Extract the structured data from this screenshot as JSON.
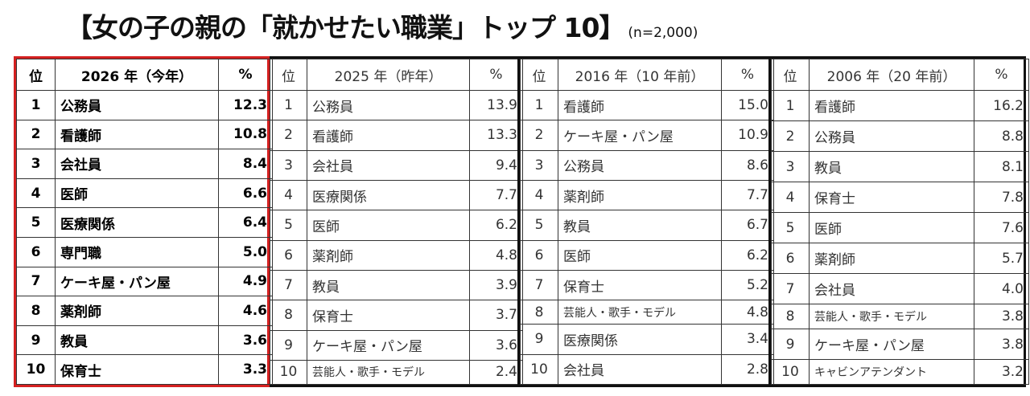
{
  "title": "【女の子の親の「就かせたい職業」トップ 10】",
  "sample": "(n=2,000)",
  "colors": {
    "highlight_border": "#d42020",
    "border": "#111111"
  },
  "chart_data": {
    "type": "table",
    "groups": [
      {
        "rank_header": "位",
        "year_header": "2026 年（今年）",
        "pct_header": "%",
        "rows": [
          {
            "rank": "1",
            "job": "公務員",
            "pct": "12.3"
          },
          {
            "rank": "2",
            "job": "看護師",
            "pct": "10.8"
          },
          {
            "rank": "3",
            "job": "会社員",
            "pct": "8.4"
          },
          {
            "rank": "4",
            "job": "医師",
            "pct": "6.6"
          },
          {
            "rank": "5",
            "job": "医療関係",
            "pct": "6.4"
          },
          {
            "rank": "6",
            "job": "専門職",
            "pct": "5.0"
          },
          {
            "rank": "7",
            "job": "ケーキ屋・パン屋",
            "pct": "4.9"
          },
          {
            "rank": "8",
            "job": "薬剤師",
            "pct": "4.6"
          },
          {
            "rank": "9",
            "job": "教員",
            "pct": "3.6"
          },
          {
            "rank": "10",
            "job": "保育士",
            "pct": "3.3"
          }
        ]
      },
      {
        "rank_header": "位",
        "year_header": "2025 年（昨年）",
        "pct_header": "%",
        "rows": [
          {
            "rank": "1",
            "job": "公務員",
            "pct": "13.9"
          },
          {
            "rank": "2",
            "job": "看護師",
            "pct": "13.3"
          },
          {
            "rank": "3",
            "job": "会社員",
            "pct": "9.4"
          },
          {
            "rank": "4",
            "job": "医療関係",
            "pct": "7.7"
          },
          {
            "rank": "5",
            "job": "医師",
            "pct": "6.2"
          },
          {
            "rank": "6",
            "job": "薬剤師",
            "pct": "4.8"
          },
          {
            "rank": "7",
            "job": "教員",
            "pct": "3.9"
          },
          {
            "rank": "8",
            "job": "保育士",
            "pct": "3.7"
          },
          {
            "rank": "9",
            "job": "ケーキ屋・パン屋",
            "pct": "3.6"
          },
          {
            "rank": "10",
            "job": "芸能人・歌手・モデル",
            "pct": "2.4"
          }
        ]
      },
      {
        "rank_header": "位",
        "year_header": "2016 年（10 年前）",
        "pct_header": "%",
        "rows": [
          {
            "rank": "1",
            "job": "看護師",
            "pct": "15.0"
          },
          {
            "rank": "2",
            "job": "ケーキ屋・パン屋",
            "pct": "10.9"
          },
          {
            "rank": "3",
            "job": "公務員",
            "pct": "8.6"
          },
          {
            "rank": "4",
            "job": "薬剤師",
            "pct": "7.7"
          },
          {
            "rank": "5",
            "job": "教員",
            "pct": "6.7"
          },
          {
            "rank": "6",
            "job": "医師",
            "pct": "6.2"
          },
          {
            "rank": "7",
            "job": "保育士",
            "pct": "5.2"
          },
          {
            "rank": "8",
            "job": "芸能人・歌手・モデル",
            "pct": "4.8"
          },
          {
            "rank": "9",
            "job": "医療関係",
            "pct": "3.4"
          },
          {
            "rank": "10",
            "job": "会社員",
            "pct": "2.8"
          }
        ]
      },
      {
        "rank_header": "位",
        "year_header": "2006 年（20 年前）",
        "pct_header": "%",
        "rows": [
          {
            "rank": "1",
            "job": "看護師",
            "pct": "16.2"
          },
          {
            "rank": "2",
            "job": "公務員",
            "pct": "8.8"
          },
          {
            "rank": "3",
            "job": "教員",
            "pct": "8.1"
          },
          {
            "rank": "4",
            "job": "保育士",
            "pct": "7.8"
          },
          {
            "rank": "5",
            "job": "医師",
            "pct": "7.6"
          },
          {
            "rank": "6",
            "job": "薬剤師",
            "pct": "5.7"
          },
          {
            "rank": "7",
            "job": "会社員",
            "pct": "4.0"
          },
          {
            "rank": "8",
            "job": "芸能人・歌手・モデル",
            "pct": "3.8"
          },
          {
            "rank": "9",
            "job": "ケーキ屋・パン屋",
            "pct": "3.8"
          },
          {
            "rank": "10",
            "job": "キャビンアテンダント",
            "pct": "3.2"
          }
        ]
      }
    ]
  }
}
